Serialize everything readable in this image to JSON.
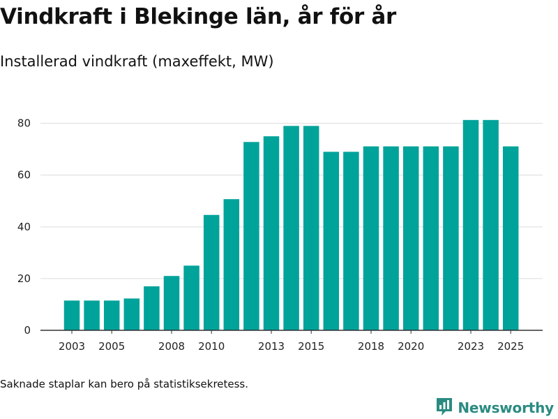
{
  "chart_data": {
    "type": "bar",
    "title": "Vindkraft i Blekinge län, år för år",
    "subtitle": "Installerad vindkraft (maxeffekt, MW)",
    "xlabel": "",
    "ylabel": "",
    "categories": [
      "2003",
      "2004",
      "2005",
      "2006",
      "2007",
      "2008",
      "2009",
      "2010",
      "2011",
      "2012",
      "2013",
      "2014",
      "2015",
      "2016",
      "2017",
      "2018",
      "2019",
      "2020",
      "2021",
      "2022",
      "2023",
      "2024",
      "2025"
    ],
    "values": [
      11.5,
      11.5,
      11.5,
      12.3,
      17,
      21,
      25,
      44.6,
      50.7,
      72.8,
      75,
      79,
      79,
      69,
      69,
      71.1,
      71.1,
      71.1,
      71.1,
      71.1,
      81.3,
      81.3,
      71.1
    ],
    "x_tick_labels": [
      "2003",
      "2005",
      "2008",
      "2010",
      "2013",
      "2015",
      "2018",
      "2020",
      "2023",
      "2025"
    ],
    "y_ticks": [
      0,
      20,
      40,
      60,
      80
    ],
    "ylim": [
      0,
      88
    ],
    "grid": true,
    "bar_color": "#00a39a"
  },
  "footnote": "Saknade staplar kan bero på statistiksekretess.",
  "brand": {
    "name": "Newsworthy",
    "icon": "newsworthy-logo-icon",
    "color": "#2a8b81"
  }
}
